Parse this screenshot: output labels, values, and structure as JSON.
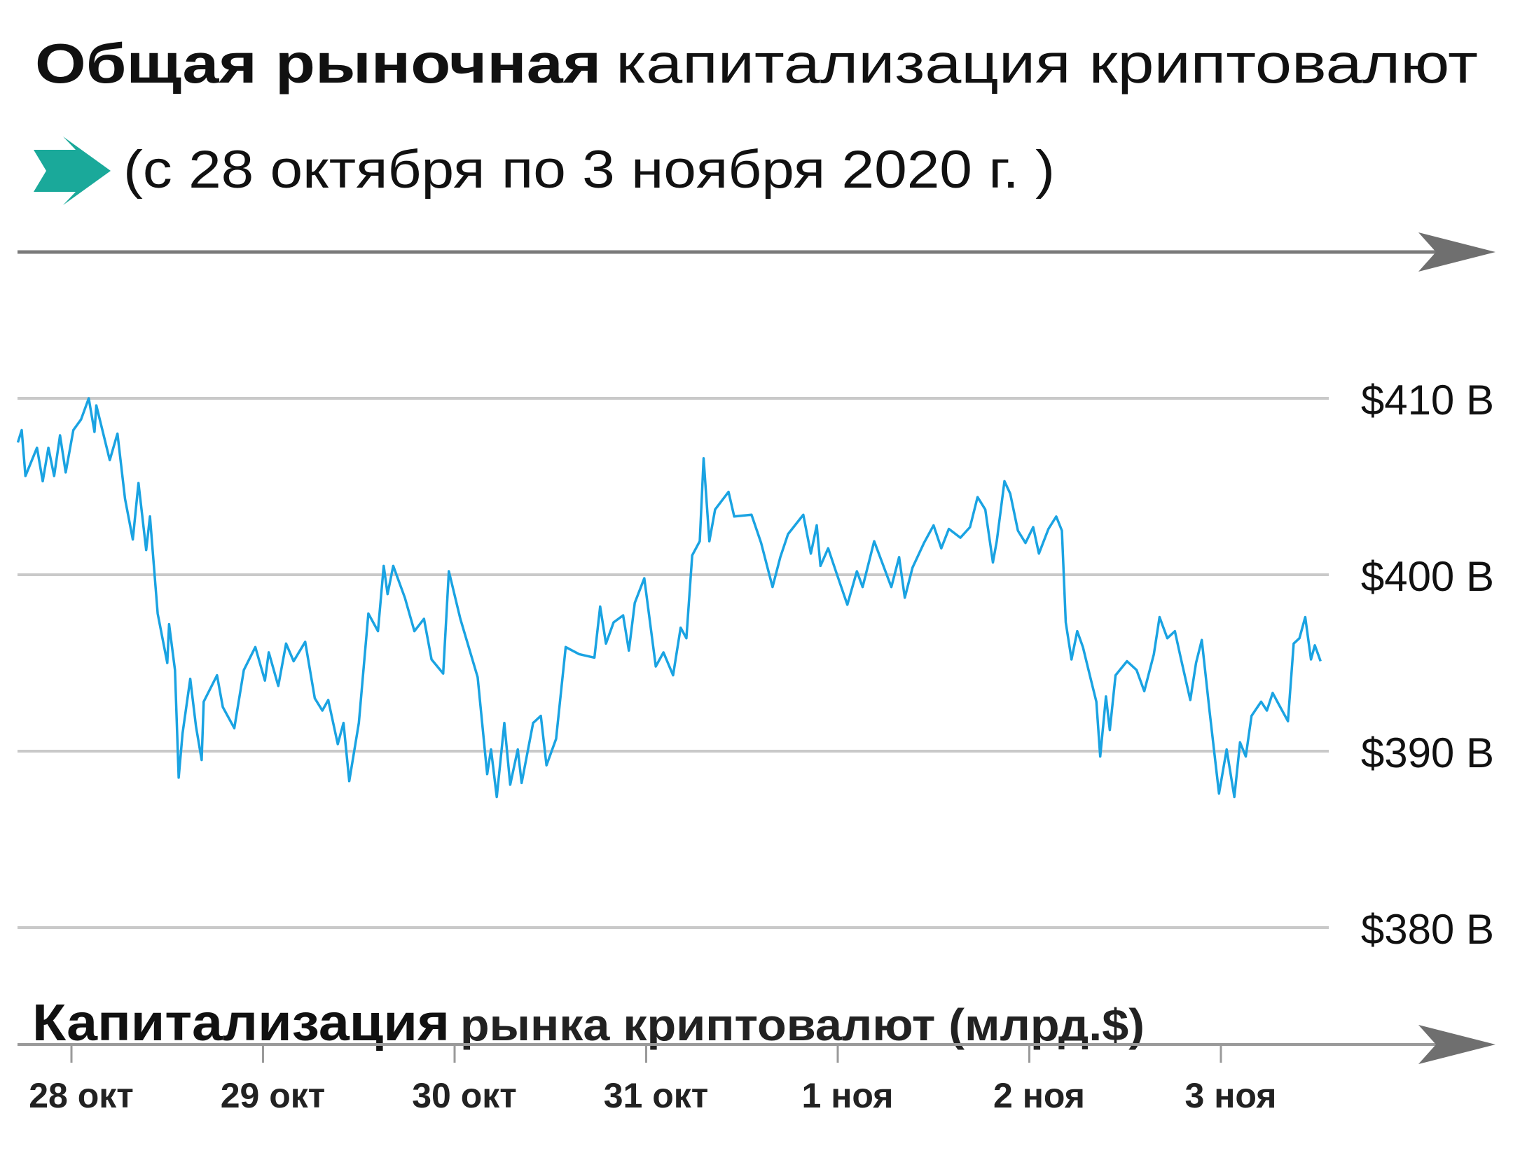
{
  "header": {
    "title_bold": "Общая рыночная",
    "title_regular": "капитализация криптовалют",
    "subtitle": "(с 28 октября по 3 ноября 2020 г. )",
    "arrow_icon": "teal-arrow-icon"
  },
  "colors": {
    "line": "#1aa3e2",
    "arrow": "#1aa99a",
    "grid": "#c9c9c9",
    "axis": "#7a7a7a"
  },
  "chart_data": {
    "type": "line",
    "title": "Общая рыночная капитализация криптовалют",
    "xlabel": "",
    "ylabel": "Капитализация рынка криптовалют (млрд.$)",
    "ylabel_bold": "Капитализация",
    "ylabel_rest": "рынка криптовалют (млрд.$)",
    "ylim": [
      380,
      410
    ],
    "grid": true,
    "yticks": [
      {
        "value": 410,
        "label": "$410 B"
      },
      {
        "value": 400,
        "label": "$400 B"
      },
      {
        "value": 390,
        "label": "$390 B"
      },
      {
        "value": 380,
        "label": "$380 B"
      }
    ],
    "xticks": [
      {
        "date": "2020-10-28",
        "label": "28 окт"
      },
      {
        "date": "2020-10-29",
        "label": "29 окт"
      },
      {
        "date": "2020-10-30",
        "label": "30 окт"
      },
      {
        "date": "2020-10-31",
        "label": "31 окт"
      },
      {
        "date": "2020-11-01",
        "label": "1 ноя"
      },
      {
        "date": "2020-11-02",
        "label": "2 ноя"
      },
      {
        "date": "2020-11-03",
        "label": "3 ноя"
      }
    ],
    "series": [
      {
        "x": [
          "2020-10-27T17:17",
          "2020-10-27T17:46",
          "2020-10-27T18:14",
          "2020-10-27T19:41",
          "2020-10-27T20:24",
          "2020-10-27T21:07",
          "2020-10-27T21:50",
          "2020-10-27T22:34",
          "2020-10-27T23:17",
          "2020-10-28T00:14",
          "2020-10-28T01:12",
          "2020-10-28T02:10",
          "2020-10-28T02:53",
          "2020-10-28T03:07",
          "2020-10-28T04:48",
          "2020-10-28T05:46",
          "2020-10-28T06:43",
          "2020-10-28T07:41",
          "2020-10-28T08:24",
          "2020-10-28T09:22",
          "2020-10-28T09:50",
          "2020-10-28T10:48",
          "2020-10-28T12:00",
          "2020-10-28T12:14",
          "2020-10-28T12:58",
          "2020-10-28T13:26",
          "2020-10-28T13:55",
          "2020-10-28T14:53",
          "2020-10-28T15:36",
          "2020-10-28T16:19",
          "2020-10-28T16:34",
          "2020-10-28T18:14",
          "2020-10-28T18:58",
          "2020-10-28T20:24",
          "2020-10-28T21:36",
          "2020-10-28T23:02",
          "2020-10-29T00:14",
          "2020-10-29T00:43",
          "2020-10-29T01:55",
          "2020-10-29T02:53",
          "2020-10-29T03:50",
          "2020-10-29T05:17",
          "2020-10-29T06:29",
          "2020-10-29T07:26",
          "2020-10-29T08:10",
          "2020-10-29T09:22",
          "2020-10-29T10:05",
          "2020-10-29T10:48",
          "2020-10-29T12:00",
          "2020-10-29T13:12",
          "2020-10-29T14:24",
          "2020-10-29T15:07",
          "2020-10-29T15:36",
          "2020-10-29T16:19",
          "2020-10-29T17:46",
          "2020-10-29T18:58",
          "2020-10-29T20:10",
          "2020-10-29T21:07",
          "2020-10-29T22:34",
          "2020-10-29T23:17",
          "2020-10-30T00:43",
          "2020-10-30T02:53",
          "2020-10-30T04:05",
          "2020-10-30T04:34",
          "2020-10-30T05:17",
          "2020-10-30T06:14",
          "2020-10-30T06:58",
          "2020-10-30T07:55",
          "2020-10-30T08:24",
          "2020-10-30T09:50",
          "2020-10-30T10:48",
          "2020-10-30T11:31",
          "2020-10-30T12:43",
          "2020-10-30T13:55",
          "2020-10-30T15:36",
          "2020-10-30T17:31",
          "2020-10-30T18:14",
          "2020-10-30T18:58",
          "2020-10-30T19:55",
          "2020-10-30T21:07",
          "2020-10-30T21:50",
          "2020-10-30T22:34",
          "2020-10-30T23:46",
          "2020-10-31T01:12",
          "2020-10-31T02:10",
          "2020-10-31T03:22",
          "2020-10-31T04:19",
          "2020-10-31T05:02",
          "2020-10-31T05:46",
          "2020-10-31T06:43",
          "2020-10-31T07:12",
          "2020-10-31T07:55",
          "2020-10-31T08:38",
          "2020-10-31T10:19",
          "2020-10-31T11:02",
          "2020-10-31T13:12",
          "2020-10-31T14:24",
          "2020-10-31T15:50",
          "2020-10-31T16:48",
          "2020-10-31T17:46",
          "2020-10-31T19:41",
          "2020-10-31T20:38",
          "2020-10-31T21:22",
          "2020-10-31T21:50",
          "2020-10-31T22:48",
          "2020-10-31T23:46",
          "2020-11-01T01:12",
          "2020-11-01T02:24",
          "2020-11-01T03:07",
          "2020-11-01T04:34",
          "2020-11-01T06:43",
          "2020-11-01T07:41",
          "2020-11-01T08:24",
          "2020-11-01T09:22",
          "2020-11-01T10:48",
          "2020-11-01T12:00",
          "2020-11-01T12:58",
          "2020-11-01T13:55",
          "2020-11-01T15:22",
          "2020-11-01T16:34",
          "2020-11-01T17:31",
          "2020-11-01T18:29",
          "2020-11-01T19:26",
          "2020-11-01T19:55",
          "2020-11-01T20:53",
          "2020-11-01T21:36",
          "2020-11-01T22:34",
          "2020-11-01T23:31",
          "2020-11-02T00:29",
          "2020-11-02T01:12",
          "2020-11-02T02:24",
          "2020-11-02T03:22",
          "2020-11-02T04:05",
          "2020-11-02T04:34",
          "2020-11-02T05:17",
          "2020-11-02T06:00",
          "2020-11-02T06:43",
          "2020-11-02T07:41",
          "2020-11-02T08:24",
          "2020-11-02T08:53",
          "2020-11-02T09:36",
          "2020-11-02T10:05",
          "2020-11-02T10:48",
          "2020-11-02T12:14",
          "2020-11-02T13:26",
          "2020-11-02T14:24",
          "2020-11-02T15:36",
          "2020-11-02T16:19",
          "2020-11-02T17:17",
          "2020-11-02T18:14",
          "2020-11-02T18:58",
          "2020-11-02T20:10",
          "2020-11-02T20:53",
          "2020-11-02T21:36",
          "2020-11-02T22:34",
          "2020-11-02T23:46",
          "2020-11-03T00:43",
          "2020-11-03T01:41",
          "2020-11-03T02:24",
          "2020-11-03T03:07",
          "2020-11-03T03:50",
          "2020-11-03T05:02",
          "2020-11-03T05:46",
          "2020-11-03T06:29",
          "2020-11-03T07:12",
          "2020-11-03T08:24",
          "2020-11-03T09:07",
          "2020-11-03T09:50",
          "2020-11-03T10:34",
          "2020-11-03T11:17",
          "2020-11-03T11:46",
          "2020-11-03T12:29"
        ],
        "y": [
          407.5,
          408.2,
          405.6,
          407.2,
          405.3,
          407.2,
          405.6,
          407.9,
          405.8,
          408.2,
          408.8,
          410.0,
          408.1,
          409.6,
          406.5,
          408.0,
          404.3,
          402.0,
          405.2,
          401.4,
          403.3,
          397.8,
          395.0,
          397.2,
          394.6,
          388.5,
          391.0,
          394.1,
          391.4,
          389.5,
          392.8,
          394.3,
          392.5,
          391.3,
          394.6,
          395.9,
          394.0,
          395.6,
          393.7,
          396.1,
          395.1,
          396.2,
          393.0,
          392.3,
          392.9,
          390.4,
          391.6,
          388.3,
          391.6,
          397.8,
          396.8,
          400.5,
          398.9,
          400.5,
          398.7,
          396.8,
          397.5,
          395.2,
          394.4,
          400.2,
          397.5,
          394.2,
          388.7,
          390.1,
          387.4,
          391.6,
          388.1,
          390.1,
          388.2,
          391.6,
          392.0,
          389.2,
          390.7,
          395.9,
          395.5,
          395.3,
          398.2,
          396.1,
          397.3,
          397.7,
          395.7,
          398.4,
          399.8,
          394.8,
          395.6,
          394.3,
          397.0,
          396.4,
          401.1,
          401.9,
          406.6,
          401.9,
          403.7,
          404.7,
          403.3,
          403.4,
          401.8,
          399.3,
          401.0,
          402.3,
          403.4,
          401.2,
          402.8,
          400.5,
          401.5,
          400.2,
          398.3,
          400.2,
          399.3,
          401.9,
          399.3,
          401.0,
          398.7,
          400.4,
          401.8,
          402.8,
          401.5,
          402.6,
          402.1,
          402.7,
          404.4,
          403.7,
          400.7,
          401.9,
          405.3,
          404.6,
          402.5,
          401.8,
          402.7,
          401.2,
          402.6,
          403.3,
          402.5,
          397.3,
          395.2,
          396.8,
          395.9,
          394.1,
          392.8,
          389.7,
          393.1,
          391.2,
          394.3,
          395.1,
          394.6,
          393.4,
          395.5,
          397.6,
          396.4,
          396.8,
          395.3,
          392.9,
          395.0,
          396.3,
          392.3,
          387.6,
          390.1,
          387.4,
          390.5,
          389.7,
          392.0,
          392.8,
          392.3,
          393.3,
          392.7,
          391.7,
          396.1,
          396.4,
          397.6,
          395.2,
          396.0,
          395.1
        ]
      }
    ]
  }
}
